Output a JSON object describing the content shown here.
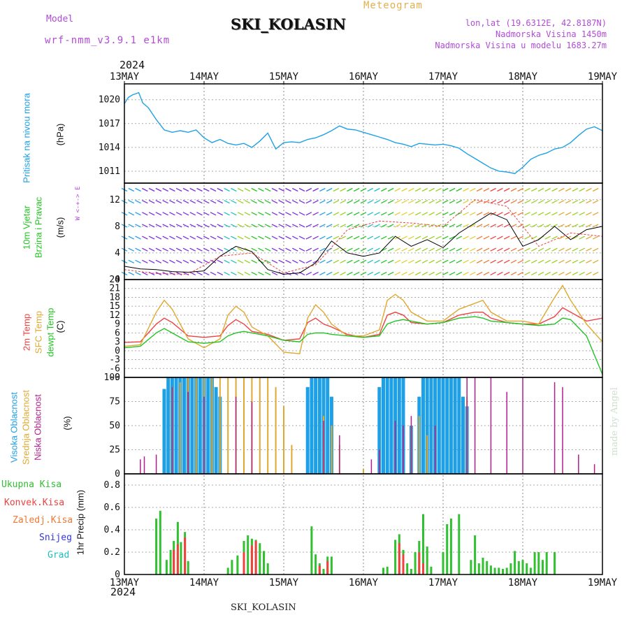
{
  "header": {
    "model_label": "Model",
    "model_name": "wrf-nmm_v3.9.1  e1km",
    "station": "SKI_KOLASIN",
    "product": "Meteogram",
    "lonlat": "lon,lat (19.6312E, 42.8187N)",
    "elevation": "Nadmorska Visina 1450m",
    "model_elevation": "Nadmorska Visina u modelu 1683.27m",
    "year_top": "2024",
    "year_bottom": "2024",
    "footer": "SKI_KOLASIN",
    "credit": "made by Angel"
  },
  "x_axis": {
    "ticks": [
      "13MAY",
      "14MAY",
      "15MAY",
      "16MAY",
      "17MAY",
      "18MAY",
      "19MAY"
    ]
  },
  "panels": {
    "pressure": {
      "label1": "Pritisak na nivou mora",
      "unit": "(hPa)",
      "ticks": [
        "1020",
        "1017",
        "1014",
        "1011"
      ]
    },
    "wind": {
      "label1": "10m Vjetar",
      "label2": "Brzina i Pravac",
      "unit": "(m/s)",
      "ticks": [
        "12",
        "8",
        "4",
        "0"
      ],
      "compass": "W <-+-> E"
    },
    "temp": {
      "label1": "2m Temp",
      "label2": "SFC Temp",
      "label3": "dewpt Temp",
      "unit": "(C)",
      "ticks": [
        "24",
        "21",
        "18",
        "15",
        "12",
        "9",
        "6",
        "3",
        "0",
        "-3",
        "-6",
        "-9"
      ]
    },
    "cloud": {
      "label1": "Visoka Oblacnost",
      "label2": "Srednja Oblacnost",
      "label3": "Niska Oblacnost",
      "unit": "(%)",
      "ticks": [
        "100",
        "75",
        "50",
        "25",
        "0"
      ]
    },
    "precip": {
      "label": "1hr Precip (mm)",
      "ticks": [
        "0.8",
        "0.6",
        "0.4",
        "0.2",
        "0"
      ],
      "legend": [
        "Ukupna Kisa",
        "Konvek.Kisa",
        "Zaledj.Kisa",
        "Snijeg",
        "Grad"
      ]
    }
  },
  "colors": {
    "pressure": "#1ea0e6",
    "temp2m": "#f04040",
    "sfc": "#e0a830",
    "dewpt": "#22c422",
    "cloud_high": "#1ea0e6",
    "cloud_mid": "#e0a830",
    "cloud_low": "#b0208c",
    "precip_total": "#30c030",
    "precip_conv": "#f04040",
    "legend_frozen": "#f07830",
    "legend_snow": "#3434e0",
    "legend_hail": "#20c0c0",
    "gust": "#f04040",
    "wind_speed_line": "#000000"
  },
  "chart_data": [
    {
      "type": "line",
      "title": "Pritisak na nivou mora",
      "ylabel": "(hPa)",
      "ylim": [
        1009.5,
        1022
      ],
      "x_unit": "days since 13MAY 00UTC",
      "series": [
        {
          "name": "Pritisak na nivou mora",
          "x": [
            0,
            0.05,
            0.1,
            0.18,
            0.23,
            0.3,
            0.4,
            0.5,
            0.6,
            0.7,
            0.8,
            0.9,
            1.0,
            1.1,
            1.2,
            1.3,
            1.4,
            1.5,
            1.6,
            1.7,
            1.8,
            1.9,
            2.0,
            2.1,
            2.2,
            2.3,
            2.4,
            2.5,
            2.6,
            2.7,
            2.8,
            2.9,
            3.0,
            3.1,
            3.2,
            3.3,
            3.4,
            3.5,
            3.6,
            3.7,
            3.8,
            3.9,
            4.0,
            4.1,
            4.2,
            4.3,
            4.4,
            4.5,
            4.6,
            4.7,
            4.8,
            4.9,
            5.0,
            5.1,
            5.2,
            5.3,
            5.4,
            5.5,
            5.6,
            5.7,
            5.8,
            5.9,
            6.0
          ],
          "y": [
            1019.5,
            1020.3,
            1020.6,
            1020.9,
            1019.6,
            1019.0,
            1017.5,
            1016.2,
            1015.9,
            1016.1,
            1015.9,
            1016.2,
            1015.2,
            1014.6,
            1015.0,
            1014.5,
            1014.3,
            1014.5,
            1014.0,
            1014.8,
            1015.8,
            1013.8,
            1014.6,
            1014.7,
            1014.6,
            1015.0,
            1015.2,
            1015.6,
            1016.1,
            1016.7,
            1016.3,
            1016.2,
            1015.9,
            1015.6,
            1015.3,
            1015.0,
            1014.6,
            1014.4,
            1014.1,
            1014.5,
            1014.4,
            1014.3,
            1014.4,
            1014.2,
            1013.9,
            1013.2,
            1012.6,
            1012.0,
            1011.4,
            1011.0,
            1010.9,
            1010.7,
            1011.5,
            1012.5,
            1013.0,
            1013.3,
            1013.8,
            1014.0,
            1014.6,
            1015.5,
            1016.3,
            1016.6,
            1016.1
          ]
        }
      ]
    },
    {
      "type": "line",
      "title": "10m Vjetar Brzina i Pravac",
      "ylabel": "(m/s)",
      "ylim": [
        0,
        14.5
      ],
      "x_unit": "days since 13MAY 00UTC",
      "series": [
        {
          "name": "Brzina",
          "x": [
            0,
            0.2,
            0.4,
            0.6,
            0.8,
            1.0,
            1.2,
            1.4,
            1.6,
            1.8,
            2.0,
            2.2,
            2.4,
            2.6,
            2.8,
            3.0,
            3.2,
            3.4,
            3.6,
            3.8,
            4.0,
            4.2,
            4.4,
            4.6,
            4.8,
            5.0,
            5.2,
            5.4,
            5.6,
            5.8,
            6.0
          ],
          "y": [
            2.0,
            1.6,
            1.5,
            1.2,
            1.1,
            1.3,
            3.5,
            5.0,
            4.2,
            1.5,
            0.8,
            1.0,
            2.5,
            5.8,
            4.0,
            3.5,
            4.0,
            6.5,
            5.0,
            6.0,
            4.8,
            7.0,
            8.5,
            10.0,
            9.0,
            5.0,
            6.0,
            8.0,
            6.0,
            7.5,
            8.0
          ]
        },
        {
          "name": "Udari",
          "x": [
            0,
            0.4,
            0.8,
            1.2,
            1.6,
            2.0,
            2.4,
            2.8,
            3.2,
            3.6,
            4.0,
            4.4,
            4.8,
            5.2,
            5.6,
            6.0
          ],
          "y": [
            1.5,
            0.9,
            0.8,
            3.5,
            4.0,
            1.0,
            2.2,
            7.5,
            8.8,
            8.5,
            8.0,
            12.0,
            11.0,
            5.0,
            7.0,
            6.5
          ]
        }
      ]
    },
    {
      "type": "line",
      "title": "2m Temp / SFC Temp / dewpt Temp",
      "ylabel": "(C)",
      "ylim": [
        -9,
        24
      ],
      "x_unit": "days since 13MAY 00UTC",
      "x": [
        0,
        0.2,
        0.4,
        0.5,
        0.6,
        0.8,
        1.0,
        1.2,
        1.3,
        1.4,
        1.5,
        1.6,
        1.8,
        2.0,
        2.2,
        2.3,
        2.4,
        2.5,
        2.6,
        2.8,
        3.0,
        3.2,
        3.3,
        3.4,
        3.5,
        3.6,
        3.8,
        4.0,
        4.2,
        4.4,
        4.5,
        4.6,
        4.8,
        5.0,
        5.2,
        5.4,
        5.5,
        5.6,
        5.8,
        6.0
      ],
      "series": [
        {
          "name": "2m Temp",
          "y": [
            2.8,
            3.0,
            9.0,
            11.0,
            9.5,
            5.0,
            4.5,
            5.0,
            8.5,
            10.5,
            9.0,
            6.5,
            5.5,
            3.5,
            4.0,
            9.5,
            11.0,
            9.0,
            8.0,
            5.5,
            4.5,
            5.5,
            12.0,
            13.0,
            12.0,
            9.5,
            9.0,
            9.5,
            12.0,
            13.0,
            13.0,
            11.0,
            9.5,
            9.0,
            9.0,
            11.5,
            14.5,
            13.0,
            10.0,
            11.0
          ]
        },
        {
          "name": "SFC Temp",
          "y": [
            1.5,
            2.0,
            13.0,
            17.0,
            14.0,
            4.0,
            1.0,
            4.0,
            12.0,
            15.0,
            13.0,
            8.0,
            5.0,
            -0.5,
            -1.0,
            11.0,
            15.5,
            13.0,
            9.0,
            5.0,
            5.0,
            7.0,
            17.0,
            19.0,
            17.0,
            13.0,
            10.0,
            10.0,
            14.0,
            16.0,
            17.0,
            13.0,
            10.0,
            10.0,
            9.0,
            18.0,
            22.0,
            17.0,
            9.0,
            3.0
          ]
        },
        {
          "name": "dewpt Temp",
          "y": [
            1.0,
            1.5,
            6.0,
            7.5,
            6.0,
            3.0,
            2.5,
            3.0,
            5.0,
            6.0,
            6.5,
            6.0,
            5.0,
            3.5,
            3.0,
            5.5,
            6.0,
            6.0,
            5.5,
            5.0,
            4.5,
            5.0,
            9.0,
            10.0,
            10.5,
            10.0,
            9.0,
            9.5,
            11.0,
            11.5,
            11.0,
            10.0,
            9.5,
            9.0,
            8.5,
            9.0,
            11.0,
            10.5,
            5.0,
            -8.0
          ]
        }
      ]
    },
    {
      "type": "bar",
      "title": "Visoka / Srednja / Niska Oblacnost",
      "ylabel": "(%)",
      "ylim": [
        0,
        100
      ],
      "x_unit": "days since 13MAY 00UTC",
      "series": [
        {
          "name": "Visoka Oblacnost",
          "x": [
            0.5,
            0.55,
            0.6,
            0.65,
            0.7,
            0.75,
            0.8,
            0.85,
            0.9,
            0.95,
            1.0,
            1.05,
            1.1,
            1.15,
            1.2,
            2.3,
            2.35,
            2.4,
            2.45,
            2.5,
            2.55,
            2.6,
            3.2,
            3.25,
            3.3,
            3.35,
            3.4,
            3.45,
            3.5,
            3.6,
            3.7,
            3.75,
            3.8,
            3.85,
            3.9,
            3.95,
            4.0,
            4.05,
            4.1,
            4.15,
            4.2,
            4.25,
            4.3
          ],
          "y": [
            88,
            100,
            100,
            100,
            100,
            100,
            100,
            100,
            100,
            100,
            100,
            100,
            100,
            90,
            80,
            90,
            100,
            100,
            100,
            100,
            100,
            80,
            90,
            100,
            100,
            100,
            100,
            100,
            100,
            50,
            80,
            100,
            100,
            100,
            100,
            100,
            100,
            100,
            100,
            100,
            100,
            80,
            70
          ]
        },
        {
          "name": "Srednja Oblacnost",
          "x": [
            0.6,
            0.7,
            0.8,
            0.9,
            1.0,
            1.1,
            1.2,
            1.3,
            1.4,
            1.5,
            1.6,
            1.7,
            1.8,
            1.9,
            2.0,
            2.1,
            2.5,
            2.6,
            2.7,
            3.0,
            3.6,
            3.7,
            3.8,
            4.3
          ],
          "y": [
            90,
            95,
            100,
            100,
            100,
            100,
            100,
            100,
            100,
            100,
            100,
            100,
            100,
            90,
            70,
            30,
            60,
            50,
            30,
            5,
            50,
            60,
            40,
            80
          ]
        },
        {
          "name": "Niska Oblacnost",
          "x": [
            0.2,
            0.25,
            0.4,
            0.6,
            0.8,
            1.0,
            1.4,
            1.6,
            2.5,
            2.7,
            3.1,
            3.2,
            3.4,
            3.5,
            3.6,
            3.9,
            4.3,
            4.4,
            4.6,
            4.8,
            5.0,
            5.4,
            5.5,
            5.7,
            5.9
          ],
          "y": [
            15,
            18,
            20,
            90,
            85,
            80,
            80,
            75,
            55,
            40,
            15,
            25,
            55,
            50,
            60,
            50,
            100,
            100,
            100,
            85,
            100,
            95,
            90,
            20,
            10
          ]
        }
      ]
    },
    {
      "type": "bar",
      "title": "1hr Precip",
      "ylabel": "(mm)",
      "ylim": [
        0,
        0.9
      ],
      "x_unit": "days since 13MAY 00UTC",
      "series": [
        {
          "name": "Ukupna Kisa",
          "x": [
            0.4,
            0.45,
            0.53,
            0.58,
            0.62,
            0.67,
            0.71,
            0.76,
            0.8,
            1.3,
            1.35,
            1.42,
            1.5,
            1.55,
            1.6,
            1.65,
            1.7,
            1.75,
            1.8,
            2.35,
            2.4,
            2.45,
            2.5,
            2.55,
            2.6,
            3.25,
            3.3,
            3.4,
            3.45,
            3.5,
            3.55,
            3.6,
            3.65,
            3.7,
            3.75,
            3.8,
            3.85,
            4.0,
            4.05,
            4.1,
            4.2,
            4.35,
            4.4,
            4.45,
            4.5,
            4.55,
            4.6,
            4.65,
            4.7,
            4.75,
            4.8,
            4.85,
            4.9,
            4.95,
            5.0,
            5.05,
            5.1,
            5.15,
            5.2,
            5.25,
            5.3,
            5.4
          ],
          "y": [
            0.5,
            0.57,
            0.13,
            0.22,
            0.3,
            0.47,
            0.29,
            0.38,
            0.12,
            0.06,
            0.13,
            0.17,
            0.3,
            0.35,
            0.32,
            0.31,
            0.28,
            0.21,
            0.1,
            0.43,
            0.18,
            0.1,
            0.05,
            0.16,
            0.16,
            0.06,
            0.07,
            0.31,
            0.36,
            0.22,
            0.1,
            0.05,
            0.2,
            0.3,
            0.54,
            0.25,
            0.07,
            0.2,
            0.45,
            0.5,
            0.54,
            0.13,
            0.35,
            0.1,
            0.15,
            0.12,
            0.08,
            0.06,
            0.06,
            0.05,
            0.06,
            0.1,
            0.21,
            0.12,
            0.13,
            0.1,
            0.06,
            0.2,
            0.2,
            0.13,
            0.2,
            0.2
          ]
        },
        {
          "name": "Konvek.Kisa",
          "x": [
            0.62,
            0.67,
            0.76,
            1.5,
            1.6,
            1.65,
            2.45,
            2.55,
            3.45,
            3.5,
            3.7,
            3.75
          ],
          "y": [
            0.22,
            0.27,
            0.33,
            0.2,
            0.26,
            0.3,
            0.08,
            0.12,
            0.28,
            0.18,
            0.2,
            0.1
          ]
        }
      ]
    }
  ]
}
